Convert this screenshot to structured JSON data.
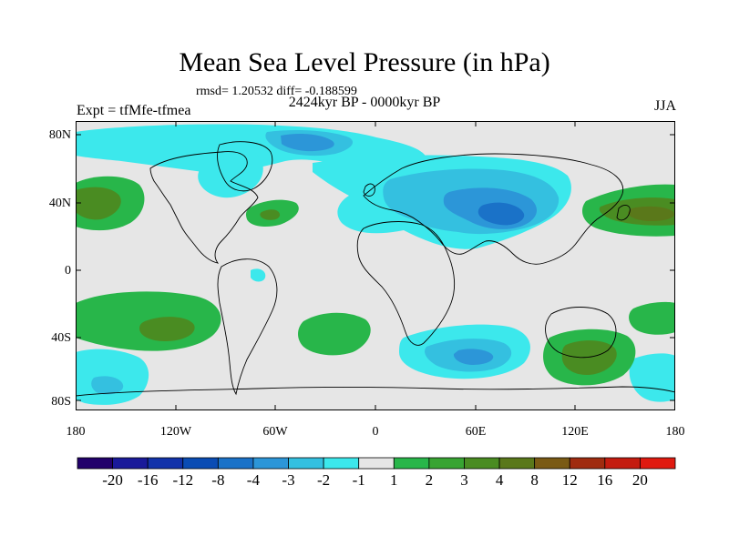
{
  "titles": {
    "main": "Mean Sea Level Pressure (in hPa)",
    "stats": "rmsd= 1.20532 diff= -0.188599",
    "period": "2424kyr BP - 0000kyr BP",
    "experiment": "Expt = tfMfe-tfmea",
    "season": "JJA"
  },
  "axes": {
    "lat_ticks": [
      "80N",
      "40N",
      "0",
      "40S",
      "80S"
    ],
    "lon_ticks": [
      "180",
      "120W",
      "60W",
      "0",
      "60E",
      "120E",
      "180"
    ]
  },
  "colorbar": {
    "labels": [
      "-20",
      "-16",
      "-12",
      "-8",
      "-4",
      "-3",
      "-2",
      "-1",
      "1",
      "2",
      "3",
      "4",
      "8",
      "12",
      "16",
      "20"
    ],
    "colors": [
      "#22006b",
      "#1a1a9a",
      "#1232aa",
      "#0a4cb4",
      "#1a72c8",
      "#2c96d8",
      "#34c0e0",
      "#3ce8ec",
      "#e6e6e6",
      "#28b64a",
      "#38a432",
      "#4a8c22",
      "#5a781a",
      "#7a5a14",
      "#a02c10",
      "#c41c10",
      "#e01a10"
    ]
  },
  "colors": {
    "background_land": "#e6e6e6",
    "coastline": "#000000"
  }
}
